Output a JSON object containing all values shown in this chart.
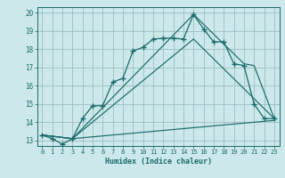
{
  "title": "",
  "xlabel": "Humidex (Indice chaleur)",
  "bg_color": "#cce8ea",
  "grid_color": "#9dbfc2",
  "line_color": "#1a6b6b",
  "xlim": [
    -0.5,
    23.5
  ],
  "ylim": [
    12.7,
    20.3
  ],
  "yticks": [
    13,
    14,
    15,
    16,
    17,
    18,
    19,
    20
  ],
  "xticks": [
    0,
    1,
    2,
    3,
    4,
    5,
    6,
    7,
    8,
    9,
    10,
    11,
    12,
    13,
    14,
    15,
    16,
    17,
    18,
    19,
    20,
    21,
    22,
    23
  ],
  "lines": [
    {
      "x": [
        0,
        1,
        2,
        3,
        4,
        5,
        6,
        7,
        8,
        9,
        10,
        11,
        12,
        13,
        14,
        15,
        16,
        17,
        18,
        19,
        20,
        21,
        22,
        23
      ],
      "y": [
        13.3,
        13.1,
        12.8,
        13.1,
        14.2,
        14.9,
        14.9,
        16.2,
        16.4,
        17.9,
        18.1,
        18.55,
        18.6,
        18.6,
        18.55,
        19.9,
        19.1,
        18.4,
        18.4,
        17.2,
        17.1,
        15.0,
        14.2,
        14.2
      ],
      "marker": true
    },
    {
      "x": [
        0,
        3,
        15,
        20,
        21,
        23
      ],
      "y": [
        13.3,
        13.1,
        19.9,
        17.2,
        17.1,
        14.2
      ],
      "marker": false
    },
    {
      "x": [
        0,
        3,
        23
      ],
      "y": [
        13.3,
        13.1,
        14.1
      ],
      "marker": false
    },
    {
      "x": [
        0,
        3,
        15,
        23
      ],
      "y": [
        13.3,
        13.1,
        18.55,
        14.2
      ],
      "marker": false
    }
  ]
}
